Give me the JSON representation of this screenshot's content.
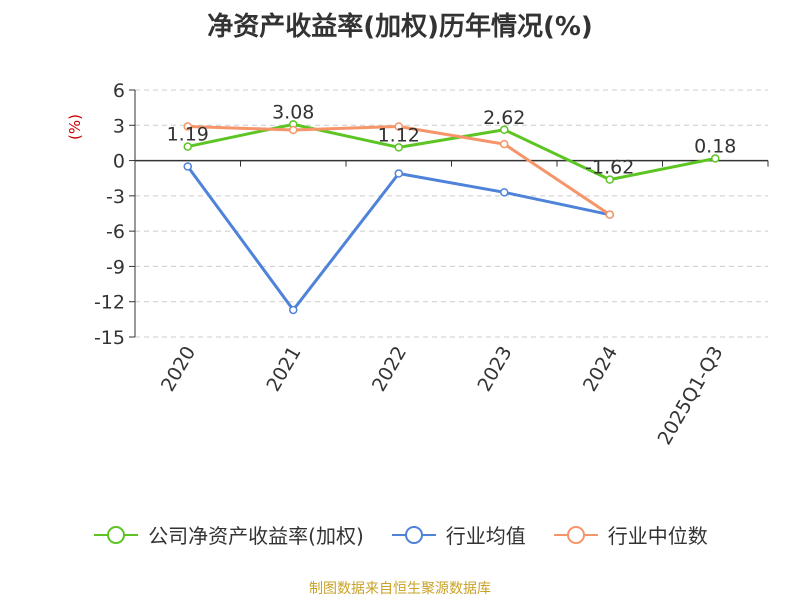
{
  "chart_data": {
    "type": "line",
    "title": "净资产收益率(加权)历年情况(%)",
    "ylabel": "(%)",
    "categories": [
      "2020",
      "2021",
      "2022",
      "2023",
      "2024",
      "2025Q1-Q3"
    ],
    "yticks": [
      6,
      3,
      0,
      -3,
      -6,
      -9,
      -12,
      -15
    ],
    "ylim": [
      -15,
      6
    ],
    "grid": true,
    "legend_position": "bottom",
    "series": [
      {
        "name": "公司净资产收益率(加权)",
        "color": "#5cc524",
        "values": [
          1.19,
          3.08,
          1.12,
          2.62,
          -1.62,
          0.18
        ],
        "labels": [
          "1.19",
          "3.08",
          "1.12",
          "2.62",
          "-1.62",
          "0.18"
        ]
      },
      {
        "name": "行业均值",
        "color": "#4f82d9",
        "values": [
          -0.5,
          -12.7,
          -1.1,
          -2.7,
          -4.6,
          null
        ]
      },
      {
        "name": "行业中位数",
        "color": "#f7956a",
        "values": [
          2.9,
          2.6,
          2.9,
          1.4,
          -4.6,
          null
        ]
      }
    ]
  },
  "source": "制图数据来自恒生聚源数据库"
}
